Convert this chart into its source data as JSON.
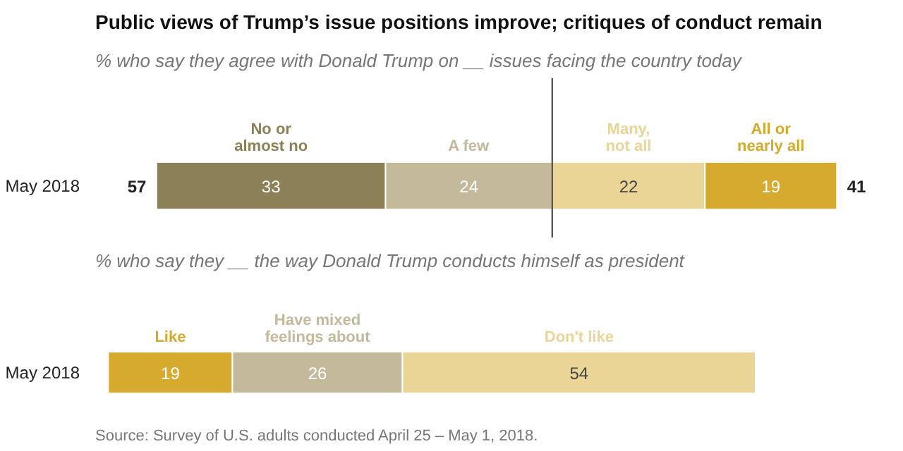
{
  "chart_data": [
    {
      "type": "bar",
      "orientation": "horizontal",
      "stacked": true,
      "title": "Public views of Trump’s issue positions improve; critiques of conduct remain",
      "subtitle": "% who say they agree with Donald Trump on __ issues facing the country today",
      "categories": [
        "May 2018"
      ],
      "tick_labels": "y",
      "grid": false,
      "series": [
        {
          "name": "No or\nalmost no",
          "color": "#8c8156",
          "values": [
            33
          ],
          "value_labels": [
            "33"
          ]
        },
        {
          "name": "A few",
          "color": "#c4b99b",
          "values": [
            24
          ],
          "value_labels": [
            "24"
          ]
        },
        {
          "name": "Many,\nnot all",
          "color": "#ead597",
          "values": [
            22
          ],
          "value_labels": [
            "22"
          ]
        },
        {
          "name": "All or\nnearly all",
          "color": "#d5aa2e",
          "values": [
            19
          ],
          "value_labels": [
            "19"
          ]
        }
      ],
      "annotations": [
        "57",
        "41"
      ],
      "ref_lines": [
        {
          "axis": "x",
          "value": 57,
          "color": "#333333"
        }
      ]
    },
    {
      "type": "bar",
      "orientation": "horizontal",
      "stacked": true,
      "subtitle": "% who say they __ the way Donald Trump conducts himself as president",
      "categories": [
        "May 2018"
      ],
      "tick_labels": "y",
      "grid": false,
      "data_labels": true,
      "series": [
        {
          "name": "Like",
          "color": "#d5aa2e",
          "values": [
            19
          ]
        },
        {
          "name": "Have mixed\nfeelings about",
          "color": "#c4b99b",
          "values": [
            26
          ]
        },
        {
          "name": "Don't like",
          "color": "#ead597",
          "values": [
            54
          ]
        }
      ],
      "annotations": [
        "Source: Survey of U.S. adults conducted April 25 – May 1, 2018."
      ]
    }
  ]
}
